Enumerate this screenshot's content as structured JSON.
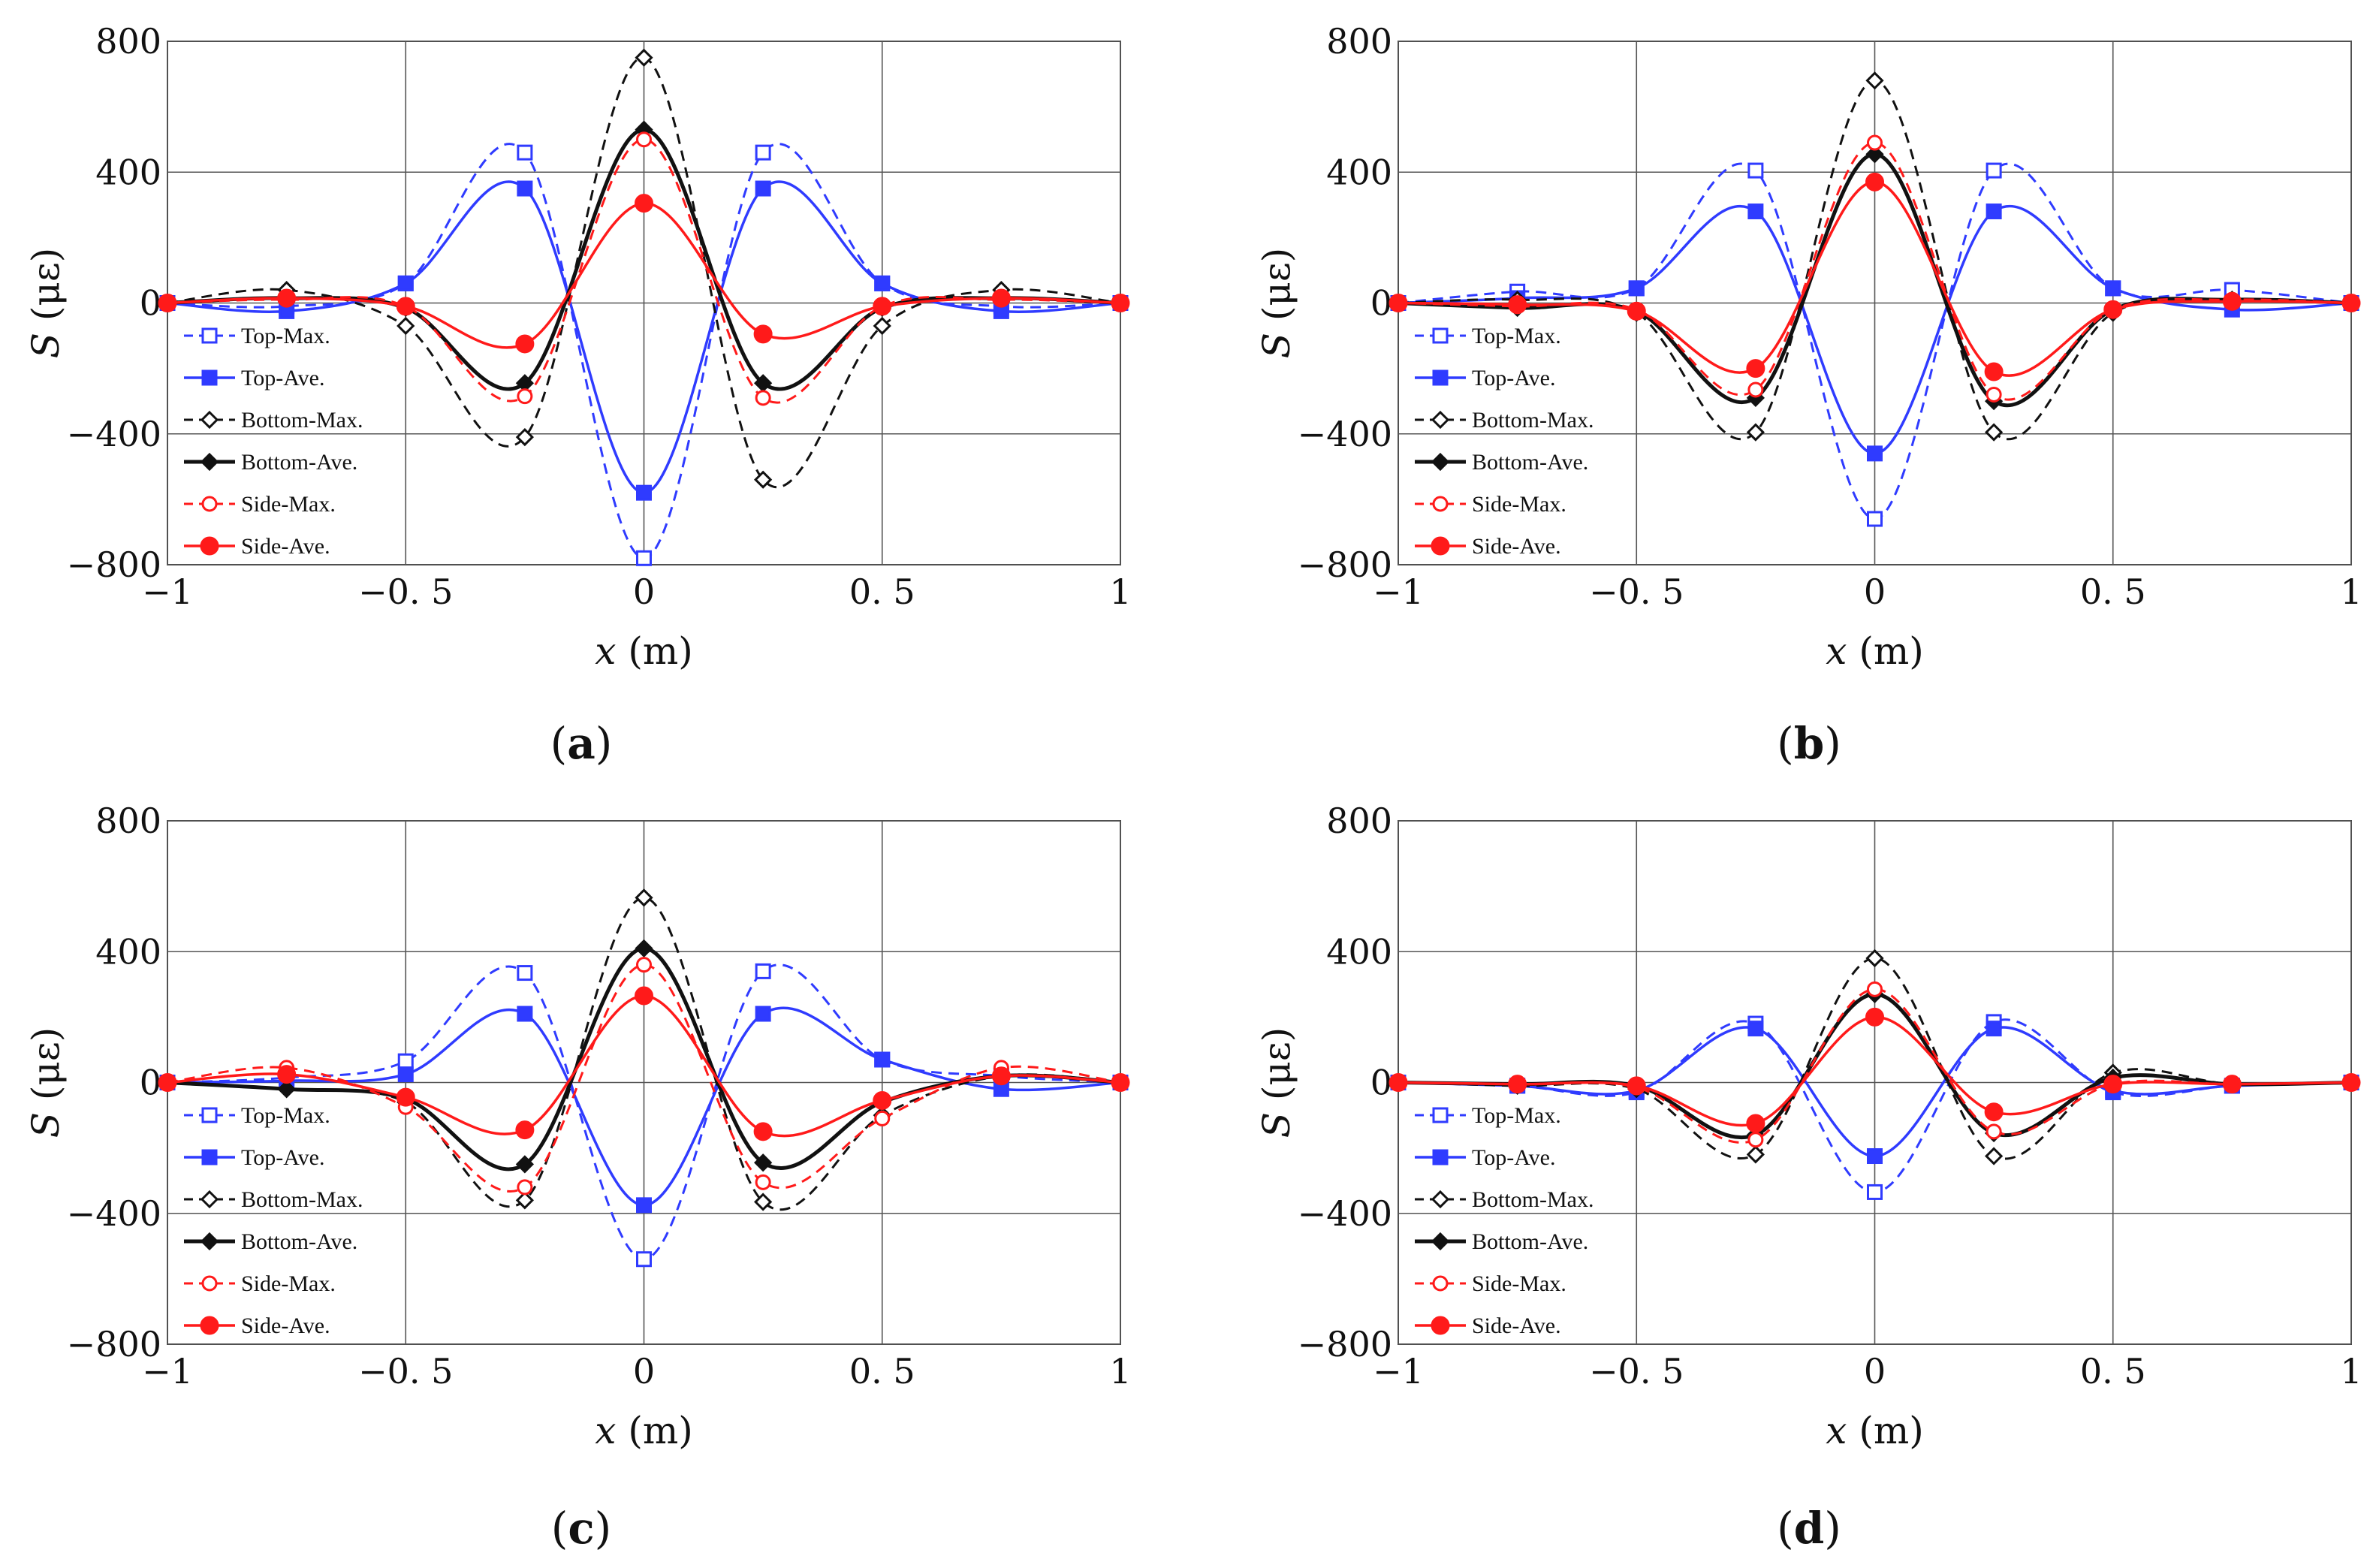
{
  "chart_data": [
    {
      "type": "line",
      "panel_label": "(a)",
      "panel_letter": "a",
      "xlabel_var": "x",
      "xlabel_unit": " (m)",
      "ylabel_var": "S",
      "ylabel_unit": " (με)",
      "xlim": [
        -1,
        1
      ],
      "ylim": [
        -800,
        800
      ],
      "xticks": [
        -1,
        -0.5,
        0,
        0.5,
        1
      ],
      "xtick_labels": [
        "−1",
        "−0. 5",
        "0",
        "0. 5",
        "1"
      ],
      "yticks": [
        -800,
        -400,
        0,
        400,
        800
      ],
      "ytick_labels": [
        "−800",
        "−400",
        "0",
        "400",
        "800"
      ],
      "x": [
        -1,
        -0.75,
        -0.5,
        -0.25,
        0,
        0.25,
        0.5,
        0.75,
        1
      ],
      "series": [
        {
          "name": "Top-Max.",
          "color": "#2f3bff",
          "dash": true,
          "marker": "square-open",
          "values": [
            0,
            -10,
            60,
            460,
            -780,
            460,
            60,
            -10,
            0
          ]
        },
        {
          "name": "Top-Ave.",
          "color": "#2f3bff",
          "dash": false,
          "marker": "square",
          "values": [
            0,
            -25,
            60,
            350,
            -580,
            350,
            60,
            -25,
            0
          ]
        },
        {
          "name": "Bottom-Max.",
          "color": "#111111",
          "dash": true,
          "marker": "diamond-open",
          "values": [
            0,
            40,
            -70,
            -410,
            750,
            -540,
            -70,
            40,
            0
          ]
        },
        {
          "name": "Bottom-Ave.",
          "color": "#111111",
          "dash": false,
          "marker": "diamond",
          "values": [
            0,
            15,
            -15,
            -245,
            530,
            -245,
            -15,
            15,
            0
          ]
        },
        {
          "name": "Side-Max.",
          "color": "#ff1a1a",
          "dash": true,
          "marker": "circle-open",
          "values": [
            0,
            10,
            -10,
            -285,
            500,
            -290,
            -10,
            10,
            0
          ]
        },
        {
          "name": "Side-Ave.",
          "color": "#ff1a1a",
          "dash": false,
          "marker": "circle",
          "values": [
            0,
            15,
            -10,
            -125,
            305,
            -95,
            -10,
            15,
            0
          ]
        }
      ]
    },
    {
      "type": "line",
      "panel_label": "(b)",
      "panel_letter": "b",
      "xlabel_var": "x",
      "xlabel_unit": " (m)",
      "ylabel_var": "S",
      "ylabel_unit": " (με)",
      "xlim": [
        -1,
        1
      ],
      "ylim": [
        -800,
        800
      ],
      "xticks": [
        -1,
        -0.5,
        0,
        0.5,
        1
      ],
      "xtick_labels": [
        "−1",
        "−0. 5",
        "0",
        "0. 5",
        "1"
      ],
      "yticks": [
        -800,
        -400,
        0,
        400,
        800
      ],
      "ytick_labels": [
        "−800",
        "−400",
        "0",
        "400",
        "800"
      ],
      "x": [
        -1,
        -0.75,
        -0.5,
        -0.25,
        0,
        0.25,
        0.5,
        0.75,
        1
      ],
      "series": [
        {
          "name": "Top-Max.",
          "color": "#2f3bff",
          "dash": true,
          "marker": "square-open",
          "values": [
            0,
            35,
            45,
            405,
            -660,
            405,
            45,
            40,
            0
          ]
        },
        {
          "name": "Top-Ave.",
          "color": "#2f3bff",
          "dash": false,
          "marker": "square",
          "values": [
            0,
            15,
            45,
            280,
            -460,
            280,
            45,
            -20,
            0
          ]
        },
        {
          "name": "Bottom-Max.",
          "color": "#111111",
          "dash": true,
          "marker": "diamond-open",
          "values": [
            0,
            10,
            -30,
            -395,
            680,
            -395,
            -30,
            10,
            0
          ]
        },
        {
          "name": "Bottom-Ave.",
          "color": "#111111",
          "dash": false,
          "marker": "diamond",
          "values": [
            0,
            -15,
            -25,
            -290,
            455,
            -300,
            -20,
            10,
            0
          ]
        },
        {
          "name": "Side-Max.",
          "color": "#ff1a1a",
          "dash": true,
          "marker": "circle-open",
          "values": [
            0,
            -10,
            -20,
            -265,
            490,
            -280,
            -20,
            10,
            0
          ]
        },
        {
          "name": "Side-Ave.",
          "color": "#ff1a1a",
          "dash": false,
          "marker": "circle",
          "values": [
            0,
            -5,
            -25,
            -200,
            370,
            -210,
            -20,
            5,
            0
          ]
        }
      ]
    },
    {
      "type": "line",
      "panel_label": "(c)",
      "panel_letter": "c",
      "xlabel_var": "x",
      "xlabel_unit": " (m)",
      "ylabel_var": "S",
      "ylabel_unit": " (με)",
      "xlim": [
        -1,
        1
      ],
      "ylim": [
        -800,
        800
      ],
      "xticks": [
        -1,
        -0.5,
        0,
        0.5,
        1
      ],
      "xtick_labels": [
        "−1",
        "−0. 5",
        "0",
        "0. 5",
        "1"
      ],
      "yticks": [
        -800,
        -400,
        0,
        400,
        800
      ],
      "ytick_labels": [
        "−800",
        "−400",
        "0",
        "400",
        "800"
      ],
      "x": [
        -1,
        -0.75,
        -0.5,
        -0.25,
        0,
        0.25,
        0.5,
        0.75,
        1
      ],
      "series": [
        {
          "name": "Top-Max.",
          "color": "#2f3bff",
          "dash": true,
          "marker": "square-open",
          "values": [
            0,
            15,
            65,
            335,
            -540,
            340,
            70,
            20,
            0
          ]
        },
        {
          "name": "Top-Ave.",
          "color": "#2f3bff",
          "dash": false,
          "marker": "square",
          "values": [
            0,
            5,
            25,
            210,
            -375,
            210,
            70,
            -20,
            0
          ]
        },
        {
          "name": "Bottom-Max.",
          "color": "#111111",
          "dash": true,
          "marker": "diamond-open",
          "values": [
            0,
            -20,
            -60,
            -360,
            565,
            -365,
            -100,
            20,
            0
          ]
        },
        {
          "name": "Bottom-Ave.",
          "color": "#111111",
          "dash": false,
          "marker": "diamond",
          "values": [
            0,
            -20,
            -50,
            -250,
            410,
            -245,
            -60,
            20,
            0
          ]
        },
        {
          "name": "Side-Max.",
          "color": "#ff1a1a",
          "dash": true,
          "marker": "circle-open",
          "values": [
            0,
            45,
            -75,
            -320,
            360,
            -305,
            -110,
            45,
            0
          ]
        },
        {
          "name": "Side-Ave.",
          "color": "#ff1a1a",
          "dash": false,
          "marker": "circle",
          "values": [
            0,
            25,
            -45,
            -145,
            265,
            -150,
            -55,
            20,
            0
          ]
        }
      ]
    },
    {
      "type": "line",
      "panel_label": "(d)",
      "panel_letter": "d",
      "xlabel_var": "x",
      "xlabel_unit": " (m)",
      "ylabel_var": "S",
      "ylabel_unit": " (με)",
      "xlim": [
        -1,
        1
      ],
      "ylim": [
        -800,
        800
      ],
      "xticks": [
        -1,
        -0.5,
        0,
        0.5,
        1
      ],
      "xtick_labels": [
        "−1",
        "−0. 5",
        "0",
        "0. 5",
        "1"
      ],
      "yticks": [
        -800,
        -400,
        0,
        400,
        800
      ],
      "ytick_labels": [
        "−800",
        "−400",
        "0",
        "400",
        "800"
      ],
      "x": [
        -1,
        -0.75,
        -0.5,
        -0.25,
        0,
        0.25,
        0.5,
        0.75,
        1
      ],
      "series": [
        {
          "name": "Top-Max.",
          "color": "#2f3bff",
          "dash": true,
          "marker": "square-open",
          "values": [
            0,
            -10,
            -30,
            180,
            -335,
            185,
            -30,
            -10,
            0
          ]
        },
        {
          "name": "Top-Ave.",
          "color": "#2f3bff",
          "dash": false,
          "marker": "square",
          "values": [
            0,
            -10,
            -25,
            165,
            -225,
            165,
            -25,
            -10,
            0
          ]
        },
        {
          "name": "Bottom-Max.",
          "color": "#111111",
          "dash": true,
          "marker": "diamond-open",
          "values": [
            0,
            -10,
            -20,
            -220,
            380,
            -225,
            30,
            -5,
            0
          ]
        },
        {
          "name": "Bottom-Ave.",
          "color": "#111111",
          "dash": false,
          "marker": "diamond",
          "values": [
            0,
            -5,
            -10,
            -160,
            270,
            -155,
            15,
            -5,
            0
          ]
        },
        {
          "name": "Side-Max.",
          "color": "#ff1a1a",
          "dash": true,
          "marker": "circle-open",
          "values": [
            0,
            -5,
            -15,
            -175,
            285,
            -150,
            -5,
            -5,
            0
          ]
        },
        {
          "name": "Side-Ave.",
          "color": "#ff1a1a",
          "dash": false,
          "marker": "circle",
          "values": [
            0,
            -5,
            -10,
            -125,
            200,
            -90,
            -5,
            -5,
            0
          ]
        }
      ]
    }
  ]
}
